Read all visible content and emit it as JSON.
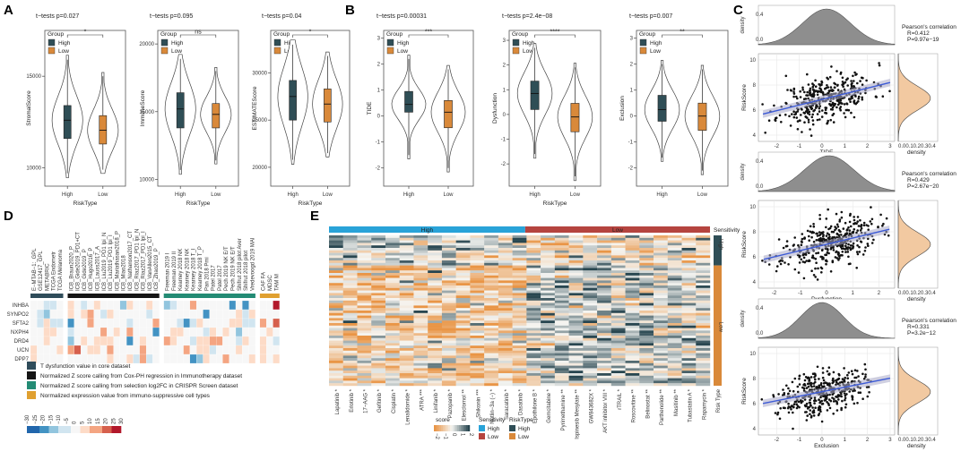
{
  "panel_labels": [
    "A",
    "B",
    "C",
    "D",
    "E"
  ],
  "colors": {
    "high": "#2f4e56",
    "low": "#d9893a",
    "high_bar": "#29a3d8",
    "low_bar": "#b5443f",
    "d_t": "#2f4c5a",
    "d_cox": "#151515",
    "d_crispr": "#238b74",
    "d_supp": "#e0a030"
  },
  "chart_data": [
    {
      "id": "A1",
      "type": "violin-box",
      "title": "t−tests p=0.027",
      "ylabel": "StromalScore",
      "xlabel": "RiskType",
      "legend_title": "Group",
      "legend": [
        "High",
        "Low"
      ],
      "categories": [
        "High",
        "Low"
      ],
      "sig": "*",
      "ylim": [
        9000,
        17500
      ],
      "yticks": [
        10000,
        15000
      ],
      "boxes": [
        {
          "min": 9700,
          "q1": 11600,
          "median": 12600,
          "q3": 13400,
          "max": 15900
        },
        {
          "min": 9900,
          "q1": 11300,
          "median": 12050,
          "q3": 12850,
          "max": 15000
        }
      ]
    },
    {
      "id": "A2",
      "type": "violin-box",
      "title": "t−tests p=0.095",
      "ylabel": "ImmuneScore",
      "xlabel": "RiskType",
      "legend_title": "Group",
      "legend": [
        "High",
        "Low"
      ],
      "categories": [
        "High",
        "Low"
      ],
      "sig": "ns",
      "ylim": [
        9500,
        21000
      ],
      "yticks": [
        10000,
        15000,
        20000
      ],
      "boxes": [
        {
          "min": 10700,
          "q1": 13800,
          "median": 15200,
          "q3": 16400,
          "max": 18900
        },
        {
          "min": 11400,
          "q1": 13800,
          "median": 14800,
          "q3": 15600,
          "max": 18000
        }
      ]
    },
    {
      "id": "A3",
      "type": "violin-box",
      "title": "t−tests p=0.04",
      "ylabel": "ESTIMATEScore",
      "xlabel": "RiskType",
      "legend_title": "Group",
      "legend": [
        "High",
        "Low"
      ],
      "categories": [
        "High",
        "Low"
      ],
      "sig": "*",
      "ylim": [
        18000,
        34500
      ],
      "yticks": [
        20000,
        25000,
        30000
      ],
      "boxes": [
        {
          "min": 20800,
          "q1": 25000,
          "median": 27500,
          "q3": 29200,
          "max": 33000
        },
        {
          "min": 21500,
          "q1": 24800,
          "median": 26700,
          "q3": 28300,
          "max": 31800
        }
      ]
    },
    {
      "id": "B1",
      "type": "violin-box",
      "title": "t−tests p=0.00031",
      "ylabel": "TIDE",
      "xlabel": "",
      "legend_title": "Group",
      "legend": [
        "High",
        "Low"
      ],
      "categories": [
        "High",
        "Low"
      ],
      "sig": "***",
      "ylim": [
        -2.7,
        3.3
      ],
      "yticks": [
        -2,
        -1,
        0,
        1,
        2,
        3
      ],
      "boxes": [
        {
          "min": -1.5,
          "q1": 0.15,
          "median": 0.45,
          "q3": 0.95,
          "max": 2.2
        },
        {
          "min": -2.0,
          "q1": -0.45,
          "median": 0.15,
          "q3": 0.6,
          "max": 1.8
        }
      ]
    },
    {
      "id": "B2",
      "type": "violin-box",
      "title": "t−tests p=2.4e−08",
      "ylabel": "Dysfunction",
      "xlabel": "RiskType",
      "legend_title": "Group",
      "legend": [
        "High",
        "Low"
      ],
      "categories": [
        "High",
        "Low"
      ],
      "sig": "****",
      "ylim": [
        -2.9,
        3.4
      ],
      "yticks": [
        -2,
        -1,
        0,
        1,
        2,
        3
      ],
      "boxes": [
        {
          "min": -1.6,
          "q1": 0.2,
          "median": 0.85,
          "q3": 1.35,
          "max": 2.7
        },
        {
          "min": -2.5,
          "q1": -0.7,
          "median": -0.1,
          "q3": 0.45,
          "max": 1.9
        }
      ]
    },
    {
      "id": "B3",
      "type": "violin-box",
      "title": "t−tests p=0.007",
      "ylabel": "Exclusion",
      "xlabel": "",
      "legend_title": "Group",
      "legend": [
        "High",
        "Low"
      ],
      "categories": [
        "High",
        "Low"
      ],
      "sig": "**",
      "ylim": [
        -2.7,
        3.3
      ],
      "yticks": [
        -2,
        -1,
        0,
        1,
        2,
        3
      ],
      "boxes": [
        {
          "min": -1.6,
          "q1": -0.2,
          "median": 0.25,
          "q3": 0.8,
          "max": 2.0
        },
        {
          "min": -2.1,
          "q1": -0.55,
          "median": 0.0,
          "q3": 0.5,
          "max": 1.8
        }
      ]
    },
    {
      "id": "C1",
      "type": "scatter",
      "xlabel": "TIDE",
      "ylabel": "RiskScore",
      "density_label": "density",
      "stat_title": "Pearson's correlation",
      "r": "R=0.412",
      "p": "P=9.97e−19",
      "xlim": [
        -2.8,
        3.2
      ],
      "ylim": [
        3.5,
        10.5
      ],
      "xticks": [
        -2,
        -1,
        0,
        1,
        2,
        3
      ],
      "yticks": [
        4,
        6,
        8,
        10
      ],
      "density_ticks": "0.00.10.20.30.4",
      "fit": {
        "slope": 0.45,
        "intercept": 6.85
      },
      "n": 380,
      "x_mean": 0.2,
      "x_sd": 1.0,
      "y_mean": 6.95,
      "y_sd": 1.05,
      "seed": 11
    },
    {
      "id": "C2",
      "type": "scatter",
      "xlabel": "Dysfunction",
      "ylabel": "RiskScore",
      "density_label": "density",
      "stat_title": "Pearson's correlation",
      "r": "R=0.429",
      "p": "P=2.67e−20",
      "xlim": [
        -2.6,
        2.6
      ],
      "ylim": [
        3.5,
        10.5
      ],
      "xticks": [
        -2,
        -1,
        0,
        1,
        2
      ],
      "yticks": [
        4,
        6,
        8,
        10
      ],
      "density_ticks": "0.00.10.20.30.4",
      "fit": {
        "slope": 0.5,
        "intercept": 7.0
      },
      "n": 380,
      "x_mean": 0.1,
      "x_sd": 0.9,
      "y_mean": 7.0,
      "y_sd": 1.05,
      "seed": 23
    },
    {
      "id": "C3",
      "type": "scatter",
      "xlabel": "Exclusion",
      "ylabel": "RiskScore",
      "density_label": "density",
      "stat_title": "Pearson's correlation",
      "r": "R=0.331",
      "p": "P=3.2e−12",
      "xlim": [
        -2.8,
        3.2
      ],
      "ylim": [
        3.5,
        10.5
      ],
      "xticks": [
        -2,
        -1,
        0,
        1,
        2,
        3
      ],
      "yticks": [
        4,
        6,
        8,
        10
      ],
      "density_ticks": "0.00.10.20.30.4",
      "fit": {
        "slope": 0.36,
        "intercept": 6.95
      },
      "n": 380,
      "x_mean": 0.0,
      "x_sd": 0.9,
      "y_mean": 6.95,
      "y_sd": 1.0,
      "seed": 37
    },
    {
      "id": "D",
      "type": "heatmap",
      "genes": [
        "INHBA",
        "SYNPO2",
        "SFTA2",
        "NXPH4",
        "DRD4",
        "UCN",
        "DPP7"
      ],
      "groups": [
        {
          "key": "t",
          "columns": [
            "E−MTAB−1:_GPL",
            "GSE12417_GPL",
            "METABRIC",
            "TCGA Endometr",
            "TCGA Melanoma"
          ]
        },
        {
          "key": "cox",
          "columns": [
            "ICB_Braun2020_P",
            "ICB_Gide2019_PD1+CT",
            "ICB_Gide2019_P",
            "ICB_Hugo2016_P",
            "ICB_Lauss2017_A",
            "ICB_Liu2019_PD1 Ipi_N",
            "ICB_Liu2019_PD1 Ipi_I",
            "ICB_Mariathasan2018_P",
            "ICB_Miao2018",
            "ICB_Nathanson2017_CT",
            "ICB_Riaz2017_PD1 Ipi_N",
            "ICB_Riaz2017_PD1 Ipi_I",
            "ICB_VanAllen2015_CT",
            "ICB_Zhao2019_P"
          ]
        },
        {
          "key": "crispr",
          "columns": [
            "Freeman 2019 I",
            "Freeman 2019 II",
            "Kearney 2018 NK",
            "Kearney 2018 NK",
            "Kearney 2018 T_I",
            "Kearney 2018 T_P",
            "Pan 2018 Pmi",
            "Patel 2017",
            "Patel 2017",
            "Pech 2019 NK E/T",
            "Pech 2019 NK E/T",
            "Shifrut 2018 pilot Aver",
            "Shifrut 2018 pilot",
            "Vredevoogd 2019 MAI"
          ]
        },
        {
          "key": "supp",
          "columns": [
            "CAF FA",
            "MDSC",
            "TAM M"
          ]
        }
      ],
      "legend_items": [
        {
          "key": "t",
          "label": "T dysfunction value in core dataset"
        },
        {
          "key": "cox",
          "label": "Normalized Z score calling from Cox-PH regression in Immunotherapy dataset"
        },
        {
          "key": "crispr",
          "label": "Normalized Z score calling from selection log2FC in CRISPR Screen dataset"
        },
        {
          "key": "supp",
          "label": "Normalized expression value from immuno-suppressive cell types"
        }
      ],
      "scale_ticks": [
        "−30",
        "−25",
        "−20",
        "−15",
        "−10",
        "−5",
        "0",
        "5",
        "10",
        "15",
        "20",
        "25",
        "30"
      ]
    },
    {
      "id": "E",
      "type": "heatmap",
      "top_labels": {
        "high": "High",
        "low": "Low",
        "sensitivity": "Sensitivity"
      },
      "side_labels": {
        "high": "High",
        "low": "Low"
      },
      "drugs": [
        "Lapatinib *",
        "Erlotinib *",
        "17−AAG *",
        "Gefitinib *",
        "Cisplatin *",
        "Lenalidomide *",
        "ATRA ***",
        "Linifanib *",
        "Pazopanib *",
        "Elesclomol **",
        "Shikonin ***",
        "Nutlin−3a (−) *",
        "Saracatinib *",
        "Dasatinib *",
        "Epothilone B *",
        "Gemcitabine *",
        "Pyrimethamine **",
        "Ispinesib Mesylate **",
        "GW843682X *",
        "AKT inhibitor VIII *",
        "rTRAIL *",
        "Roscovitine **",
        "Belinostat **",
        "Parthenolide **",
        "Masitinib **",
        "Tubastatin A *",
        "Rapamycin *"
      ],
      "risk_type_label": "Risk Type",
      "score_legend": {
        "title": "score",
        "ticks": [
          "−2",
          "−1",
          "0",
          "1",
          "2"
        ]
      },
      "sensitivity_legend": {
        "title": "Sensitivity",
        "items": [
          "High",
          "Low"
        ]
      },
      "risktype_legend": {
        "title": "RiskType",
        "items": [
          "High",
          "Low"
        ]
      }
    }
  ]
}
